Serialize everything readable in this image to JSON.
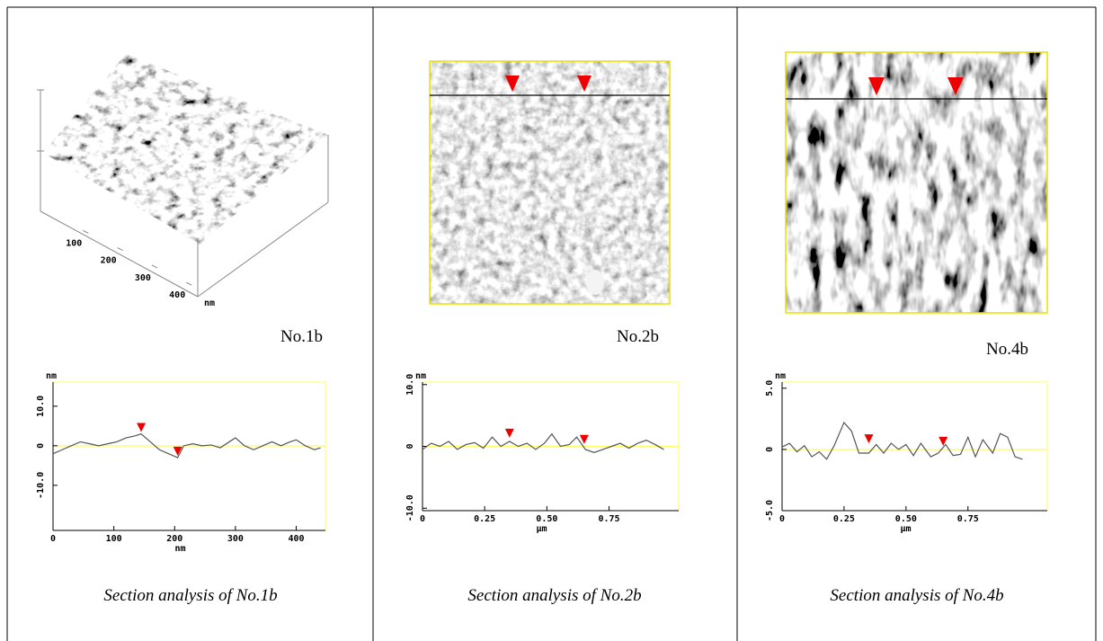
{
  "panels": [
    {
      "label": "No.1b",
      "caption": "Section analysis of No.1b",
      "surface_ticks": [
        100,
        200,
        300,
        400
      ],
      "surface_unit": "nm"
    },
    {
      "label": "No.2b",
      "caption": "Section analysis of No.2b"
    },
    {
      "label": "No.4b",
      "caption": "Section analysis of No.4b"
    }
  ],
  "chart_data": [
    {
      "type": "line",
      "y_unit": "nm",
      "x_unit": "nm",
      "color": "#555555",
      "reference_color": "#ffff66",
      "xlim": [
        0,
        448
      ],
      "ylim": [
        -21.4,
        16.1
      ],
      "xticks": [
        0,
        100,
        200,
        300,
        400
      ],
      "yticks": [
        {
          "value": 10,
          "label": "10.0"
        },
        0,
        {
          "value": -10,
          "label": "-10.0"
        }
      ],
      "reference_line": 0,
      "x": [
        0,
        15,
        30,
        45,
        60,
        75,
        90,
        105,
        120,
        135,
        145,
        160,
        175,
        190,
        205,
        215,
        230,
        245,
        260,
        275,
        290,
        300,
        315,
        330,
        345,
        360,
        375,
        390,
        400,
        415,
        430,
        440
      ],
      "values": [
        -2,
        -1,
        0,
        1,
        0.5,
        0,
        0.5,
        1,
        2,
        2.5,
        3,
        1,
        -1,
        -2,
        -3,
        0,
        0.5,
        0,
        0.2,
        -0.5,
        1,
        2,
        0,
        -1,
        0,
        1,
        0,
        1,
        1.5,
        0,
        -1,
        -0.5
      ],
      "cursors_x": [
        145,
        205
      ],
      "cursors_y": [
        3.5,
        -2.5
      ]
    },
    {
      "type": "line",
      "y_unit": "nm",
      "x_unit": "μm",
      "color": "#555555",
      "reference_color": "#ffff66",
      "xlim": [
        0,
        1.03
      ],
      "ylim": [
        -10.4,
        10.4
      ],
      "xticks": [
        0,
        0.25,
        {
          "value": 0.5,
          "label": "0.50"
        },
        0.75
      ],
      "yticks": [
        {
          "value": 10,
          "label": "10.0"
        },
        0,
        {
          "value": -10,
          "label": "-10.0"
        }
      ],
      "reference_line": 0,
      "x": [
        0,
        0.035,
        0.07,
        0.105,
        0.14,
        0.175,
        0.21,
        0.245,
        0.28,
        0.315,
        0.35,
        0.385,
        0.42,
        0.455,
        0.49,
        0.52,
        0.555,
        0.59,
        0.62,
        0.655,
        0.69,
        0.725,
        0.76,
        0.795,
        0.83,
        0.865,
        0.9,
        0.935,
        0.97
      ],
      "values": [
        -0.5,
        0.5,
        0,
        0.8,
        -0.5,
        0.3,
        0.6,
        -0.3,
        1.5,
        0,
        0.8,
        0,
        0.5,
        -0.5,
        0.5,
        2,
        0,
        0.3,
        1.5,
        -0.5,
        -1,
        -0.5,
        0,
        0.5,
        -0.3,
        0.5,
        1,
        0.3,
        -0.5
      ],
      "cursors_x": [
        0.35,
        0.65
      ],
      "cursors_y": [
        1.4,
        0.4
      ]
    },
    {
      "type": "line",
      "y_unit": "nm",
      "x_unit": "μm",
      "color": "#555555",
      "reference_color": "#ffff66",
      "xlim": [
        0,
        1.07
      ],
      "ylim": [
        -5,
        5.5
      ],
      "xticks": [
        0,
        0.25,
        {
          "value": 0.5,
          "label": "0.50"
        },
        0.75
      ],
      "yticks": [
        {
          "value": 5,
          "label": "5.0"
        },
        0,
        {
          "value": -5,
          "label": "-5.0"
        }
      ],
      "reference_line": 0,
      "x": [
        0,
        0.03,
        0.06,
        0.09,
        0.12,
        0.15,
        0.18,
        0.21,
        0.25,
        0.28,
        0.31,
        0.35,
        0.38,
        0.41,
        0.44,
        0.47,
        0.5,
        0.53,
        0.56,
        0.6,
        0.63,
        0.66,
        0.69,
        0.72,
        0.75,
        0.78,
        0.81,
        0.85,
        0.88,
        0.91,
        0.94,
        0.97
      ],
      "values": [
        0.2,
        0.5,
        -0.2,
        0.3,
        -0.6,
        -0.2,
        -0.8,
        0.3,
        2.2,
        1.5,
        -0.3,
        -0.3,
        0.4,
        -0.3,
        0.5,
        0,
        0.4,
        -0.5,
        0.5,
        -0.6,
        -0.3,
        0.4,
        -0.5,
        -0.4,
        1,
        -0.6,
        0.8,
        -0.3,
        1.3,
        1,
        -0.6,
        -0.8
      ],
      "cursors_x": [
        0.35,
        0.65
      ],
      "cursors_y": [
        0.5,
        0.3
      ]
    }
  ]
}
